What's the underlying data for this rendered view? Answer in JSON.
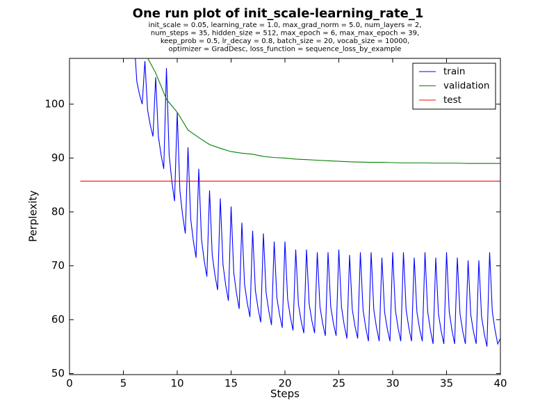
{
  "chart_data": {
    "type": "line",
    "title": "One run plot of init_scale-learning_rate_1",
    "subtitle": [
      "init_scale = 0.05, learning_rate = 1.0, max_grad_norm = 5.0, num_layers = 2,",
      "num_steps = 35, hidden_size = 512, max_epoch = 6, max_max_epoch = 39,",
      "keep_prob = 0.5, lr_decay = 0.8, batch_size = 20, vocab_size = 10000,",
      "optimizer = GradDesc, loss_function = sequence_loss_by_example"
    ],
    "x_label": "Steps",
    "y_label": "Perplexity",
    "xlim": [
      0,
      40
    ],
    "xticks": [
      0,
      5,
      10,
      15,
      20,
      25,
      30,
      35,
      40
    ],
    "ylim": [
      49.8,
      108.5
    ],
    "yticks": [
      50,
      60,
      70,
      80,
      90,
      100
    ],
    "legend": "upper right",
    "series": [
      {
        "name": "train",
        "color": "#0000ff",
        "x": [
          6,
          6.25,
          6.5,
          6.75,
          7,
          7.25,
          7.5,
          7.75,
          8,
          8.25,
          8.5,
          8.75,
          9,
          9.25,
          9.5,
          9.75,
          10,
          10.25,
          10.5,
          10.75,
          11,
          11.25,
          11.5,
          11.75,
          12,
          12.25,
          12.5,
          12.75,
          13,
          13.25,
          13.5,
          13.75,
          14,
          14.25,
          14.5,
          14.75,
          15,
          15.25,
          15.5,
          15.75,
          16,
          16.25,
          16.5,
          16.75,
          17,
          17.25,
          17.5,
          17.75,
          18,
          18.25,
          18.5,
          18.75,
          19,
          19.25,
          19.5,
          19.75,
          20,
          20.25,
          20.5,
          20.75,
          21,
          21.25,
          21.5,
          21.75,
          22,
          22.25,
          22.5,
          22.75,
          23,
          23.25,
          23.5,
          23.75,
          24,
          24.25,
          24.5,
          24.75,
          25,
          25.25,
          25.5,
          25.75,
          26,
          26.25,
          26.5,
          26.75,
          27,
          27.25,
          27.5,
          27.75,
          28,
          28.25,
          28.5,
          28.75,
          29,
          29.25,
          29.5,
          29.75,
          30,
          30.25,
          30.5,
          30.75,
          31,
          31.25,
          31.5,
          31.75,
          32,
          32.25,
          32.5,
          32.75,
          33,
          33.25,
          33.5,
          33.75,
          34,
          34.25,
          34.5,
          34.75,
          35,
          35.25,
          35.5,
          35.75,
          36,
          36.25,
          36.5,
          36.75,
          37,
          37.25,
          37.5,
          37.75,
          38,
          38.25,
          38.5,
          38.75,
          39,
          39.25,
          39.5,
          39.75,
          40
        ],
        "values": [
          112,
          104.2,
          101.8,
          100,
          108,
          98.9,
          96.1,
          94,
          105,
          94.0,
          90.6,
          88,
          106.7,
          90.6,
          85.7,
          82,
          98.5,
          83.9,
          79.4,
          76,
          92,
          78.7,
          74.6,
          71.5,
          88,
          75,
          71,
          68,
          84,
          72.0,
          68.3,
          65.5,
          82.5,
          70.2,
          66.4,
          63.5,
          81,
          68.7,
          64.9,
          62,
          78,
          66.6,
          63.1,
          60.5,
          76.5,
          65.5,
          62.1,
          59.5,
          76,
          65,
          61.6,
          59,
          74.5,
          64.1,
          60.9,
          58.5,
          74.5,
          63.8,
          60.5,
          58,
          73,
          62.9,
          59.8,
          57.5,
          73,
          62.9,
          59.8,
          57.5,
          72.5,
          62.4,
          59.3,
          57,
          72.5,
          62.4,
          59.3,
          57,
          73,
          62.3,
          59,
          56.5,
          72,
          61.9,
          58.8,
          56.5,
          72.5,
          61.8,
          58.5,
          56,
          72.5,
          61.8,
          58.5,
          56,
          71.5,
          61.4,
          58.3,
          56,
          72.5,
          61.8,
          58.5,
          56,
          72.5,
          61.8,
          58.5,
          56,
          71.5,
          61.4,
          58.3,
          56,
          72.5,
          61.5,
          58.1,
          55.5,
          71.5,
          61.1,
          57.9,
          55.5,
          72.5,
          61.5,
          58.1,
          55.5,
          71.5,
          61.1,
          57.9,
          55.5,
          71,
          60.9,
          57.8,
          55.5,
          71,
          60.6,
          57.4,
          55,
          72.5,
          61.5,
          58.1,
          55.5,
          56.5
        ]
      },
      {
        "name": "validation",
        "color": "#008000",
        "x": [
          6,
          7,
          8,
          9,
          10,
          11,
          12,
          13,
          14,
          15,
          16,
          17,
          18,
          19,
          20,
          21,
          22,
          23,
          24,
          25,
          26,
          27,
          28,
          29,
          30,
          31,
          32,
          33,
          34,
          35,
          36,
          37,
          38,
          39,
          40
        ],
        "values": [
          114,
          109.5,
          105.8,
          100.9,
          98.5,
          95.2,
          93.8,
          92.5,
          91.8,
          91.2,
          90.9,
          90.7,
          90.3,
          90.1,
          90.0,
          89.8,
          89.7,
          89.6,
          89.5,
          89.4,
          89.3,
          89.25,
          89.2,
          89.2,
          89.15,
          89.1,
          89.1,
          89.1,
          89.05,
          89.05,
          89.05,
          89.0,
          89.0,
          89.0,
          89.0
        ]
      },
      {
        "name": "test",
        "color": "#ff0000",
        "x": [
          1,
          40
        ],
        "values": [
          85.7,
          85.7
        ]
      }
    ]
  }
}
